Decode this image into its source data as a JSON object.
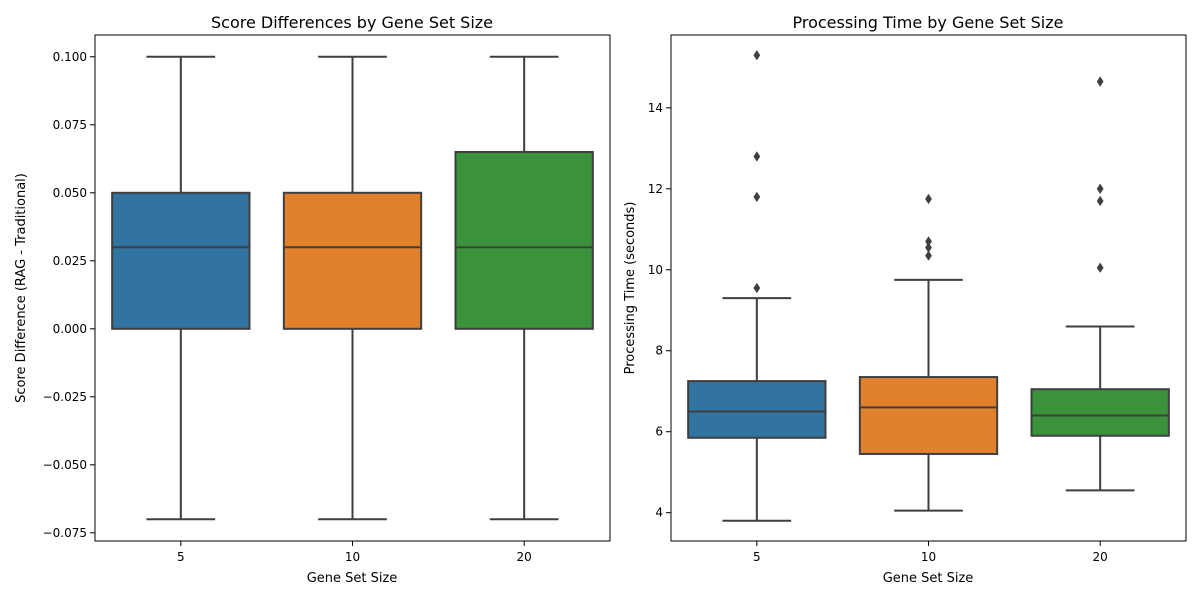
{
  "chart_data": [
    {
      "type": "box",
      "title": "Score Differences by Gene Set Size",
      "xlabel": "Gene Set Size",
      "ylabel": "Score Difference (RAG - Traditional)",
      "categories": [
        "5",
        "10",
        "20"
      ],
      "colors": [
        "#3274a1",
        "#e1812c",
        "#3a923a"
      ],
      "ylim": [
        -0.078,
        0.108
      ],
      "yticks": [
        -0.075,
        -0.05,
        -0.025,
        0.0,
        0.025,
        0.05,
        0.075,
        0.1
      ],
      "ytick_labels": [
        "−0.075",
        "−0.050",
        "−0.025",
        "0.000",
        "0.025",
        "0.050",
        "0.075",
        "0.100"
      ],
      "grid": false,
      "boxes": [
        {
          "category": "5",
          "whisker_low": -0.07,
          "q1": 0.0,
          "median": 0.03,
          "q3": 0.05,
          "whisker_high": 0.1,
          "outliers": []
        },
        {
          "category": "10",
          "whisker_low": -0.07,
          "q1": 0.0,
          "median": 0.03,
          "q3": 0.05,
          "whisker_high": 0.1,
          "outliers": []
        },
        {
          "category": "20",
          "whisker_low": -0.07,
          "q1": 0.0,
          "median": 0.03,
          "q3": 0.065,
          "whisker_high": 0.1,
          "outliers": []
        }
      ]
    },
    {
      "type": "box",
      "title": "Processing Time by Gene Set Size",
      "xlabel": "Gene Set Size",
      "ylabel": "Processing Time (seconds)",
      "categories": [
        "5",
        "10",
        "20"
      ],
      "colors": [
        "#3274a1",
        "#e1812c",
        "#3a923a"
      ],
      "ylim": [
        3.3,
        15.8
      ],
      "yticks": [
        4,
        6,
        8,
        10,
        12,
        14
      ],
      "ytick_labels": [
        "4",
        "6",
        "8",
        "10",
        "12",
        "14"
      ],
      "grid": false,
      "boxes": [
        {
          "category": "5",
          "whisker_low": 3.8,
          "q1": 5.85,
          "median": 6.5,
          "q3": 7.25,
          "whisker_high": 9.3,
          "outliers": [
            9.55,
            11.8,
            12.8,
            15.3
          ]
        },
        {
          "category": "10",
          "whisker_low": 4.05,
          "q1": 5.45,
          "median": 6.6,
          "q3": 7.35,
          "whisker_high": 9.75,
          "outliers": [
            10.35,
            10.55,
            10.7,
            11.75
          ]
        },
        {
          "category": "20",
          "whisker_low": 4.55,
          "q1": 5.9,
          "median": 6.4,
          "q3": 7.05,
          "whisker_high": 8.6,
          "outliers": [
            10.05,
            11.7,
            12.0,
            14.65
          ]
        }
      ]
    }
  ]
}
